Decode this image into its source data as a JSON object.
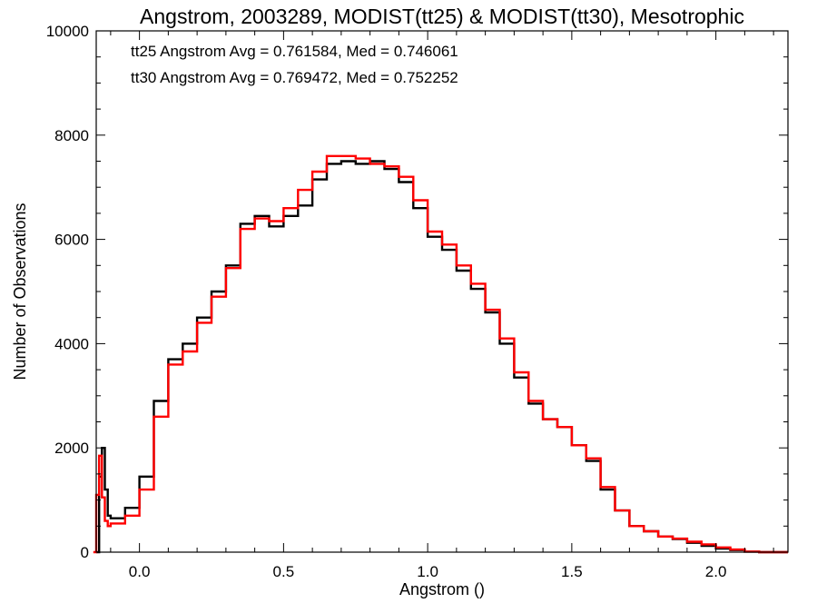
{
  "chart_data": {
    "type": "line",
    "step": true,
    "title": "Angstrom, 2003289, MODIST(tt25) & MODIST(tt30), Mesotrophic",
    "xlabel": "Angstrom ()",
    "ylabel": "Number of Observations",
    "xlim": [
      -0.15,
      2.25
    ],
    "ylim": [
      0,
      10000
    ],
    "xticks": [
      0.0,
      0.5,
      1.0,
      1.5,
      2.0
    ],
    "xtick_labels": [
      "0.0",
      "0.5",
      "1.0",
      "1.5",
      "2.0"
    ],
    "yticks": [
      0,
      2000,
      4000,
      6000,
      8000,
      10000
    ],
    "ytick_labels": [
      "0",
      "2000",
      "4000",
      "6000",
      "8000",
      "10000"
    ],
    "grid": false,
    "annotations": [
      {
        "text": "tt25 Angstrom Avg = 0.761584, Med = 0.746061",
        "color": "#000000"
      },
      {
        "text": "tt30 Angstrom Avg = 0.769472, Med = 0.752252",
        "color": "#ff0000"
      }
    ],
    "series": [
      {
        "color": "#000000",
        "x": [
          -0.15,
          -0.14,
          -0.13,
          -0.12,
          -0.11,
          -0.1,
          -0.05,
          0.0,
          0.05,
          0.1,
          0.15,
          0.2,
          0.25,
          0.3,
          0.35,
          0.4,
          0.45,
          0.5,
          0.55,
          0.6,
          0.65,
          0.7,
          0.75,
          0.8,
          0.85,
          0.9,
          0.95,
          1.0,
          1.05,
          1.1,
          1.15,
          1.2,
          1.25,
          1.3,
          1.35,
          1.4,
          1.45,
          1.5,
          1.55,
          1.6,
          1.65,
          1.7,
          1.75,
          1.8,
          1.85,
          1.9,
          1.95,
          2.0,
          2.05,
          2.1,
          2.15,
          2.2
        ],
        "y": [
          0,
          1450,
          2000,
          1200,
          700,
          650,
          850,
          1450,
          2900,
          3700,
          4000,
          4500,
          5000,
          5500,
          6300,
          6450,
          6250,
          6450,
          6650,
          7150,
          7450,
          7500,
          7450,
          7500,
          7350,
          7100,
          6600,
          6050,
          5800,
          5400,
          5050,
          4600,
          4000,
          3350,
          2850,
          2550,
          2400,
          2050,
          1750,
          1200,
          800,
          500,
          400,
          300,
          250,
          180,
          120,
          70,
          40,
          10,
          0,
          0
        ]
      },
      {
        "color": "#ff0000",
        "x": [
          -0.16,
          -0.15,
          -0.14,
          -0.13,
          -0.12,
          -0.11,
          -0.1,
          -0.05,
          0.0,
          0.05,
          0.1,
          0.15,
          0.2,
          0.25,
          0.3,
          0.35,
          0.4,
          0.45,
          0.5,
          0.55,
          0.6,
          0.65,
          0.7,
          0.75,
          0.8,
          0.85,
          0.9,
          0.95,
          1.0,
          1.05,
          1.1,
          1.15,
          1.2,
          1.25,
          1.3,
          1.35,
          1.4,
          1.45,
          1.5,
          1.55,
          1.6,
          1.65,
          1.7,
          1.75,
          1.8,
          1.85,
          1.9,
          1.95,
          2.0,
          2.05,
          2.1,
          2.15,
          2.2
        ],
        "y": [
          0,
          1100,
          1850,
          1050,
          600,
          500,
          550,
          700,
          1200,
          2600,
          3600,
          3850,
          4400,
          4900,
          5450,
          6200,
          6400,
          6350,
          6600,
          6950,
          7300,
          7600,
          7600,
          7550,
          7450,
          7400,
          7200,
          6750,
          6150,
          5900,
          5500,
          5150,
          4650,
          4100,
          3450,
          2900,
          2550,
          2400,
          2050,
          1800,
          1250,
          800,
          500,
          400,
          300,
          260,
          200,
          150,
          90,
          50,
          10,
          0,
          0
        ]
      }
    ]
  }
}
